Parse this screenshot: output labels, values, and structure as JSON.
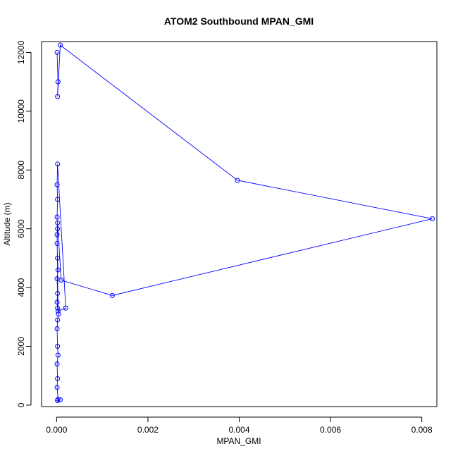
{
  "chart_data": {
    "type": "line",
    "title": "ATOM2 Southbound MPAN_GMI",
    "xlabel": "MPAN_GMI",
    "ylabel": "Altitude (m)",
    "xlim": [
      -0.00033,
      0.00833
    ],
    "ylim": [
      -50,
      12370
    ],
    "xticks": [
      0,
      0.002,
      0.004,
      0.006,
      0.008
    ],
    "xtick_labels": [
      "0.000",
      "0.002",
      "0.004",
      "0.006",
      "0.008"
    ],
    "yticks": [
      0,
      2000,
      4000,
      6000,
      8000,
      10000,
      12000
    ],
    "ytick_labels": [
      "0",
      "2000",
      "4000",
      "6000",
      "8000",
      "10000",
      "12000"
    ],
    "grid": false,
    "series": [
      {
        "color": "#0000ff",
        "marker": "open-circle",
        "x": [
          8e-05,
          2e-05,
          3e-05,
          1e-05,
          2e-05,
          1e-05,
          3e-05,
          2e-05,
          1e-05,
          2e-05,
          4e-05,
          2e-05,
          1e-05,
          2e-05,
          1e-05,
          3e-05,
          2e-05,
          1e-05,
          2e-05,
          1e-05,
          2e-05,
          1e-05,
          2e-05,
          0.0002,
          3e-05,
          1e-05,
          2e-05,
          0.0001,
          0.00122,
          0.00823,
          0.00396,
          8e-05,
          2e-05,
          3e-05,
          1e-05
        ],
        "y": [
          180,
          150,
          200,
          600,
          900,
          1400,
          1700,
          2000,
          2600,
          2900,
          3100,
          3300,
          3500,
          3800,
          4300,
          4600,
          5000,
          5500,
          6000,
          6400,
          7000,
          7500,
          8200,
          3300,
          3200,
          5800,
          6200,
          4250,
          3730,
          6340,
          7650,
          12250,
          10500,
          11000,
          12000
        ]
      }
    ]
  }
}
